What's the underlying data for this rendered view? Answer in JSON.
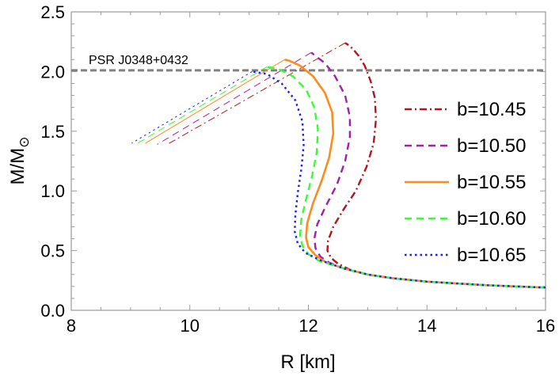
{
  "chart_data": {
    "type": "line",
    "xlabel": "R [km]",
    "ylabel_main": "M/M",
    "ylabel_sub": "⊙",
    "xlim": [
      8,
      16
    ],
    "ylim": [
      0,
      2.5
    ],
    "xticks": [
      8,
      10,
      12,
      14,
      16
    ],
    "xtick_labels": [
      "8",
      "10",
      "12",
      "14",
      "16"
    ],
    "yticks": [
      0,
      0.5,
      1.0,
      1.5,
      2.0,
      2.5
    ],
    "ytick_labels": [
      "0.0",
      "0.5",
      "1.0",
      "1.5",
      "2.0",
      "2.5"
    ],
    "grid": false,
    "legend_position": "right",
    "reference_line": {
      "label": "PSR J0348+0432",
      "y": 2.01,
      "color": "#808080"
    },
    "series": [
      {
        "name": "b=10.45",
        "color": "#b0161d",
        "dash": "dashdot",
        "x": [
          16.0,
          15.0,
          14.0,
          13.4,
          13.0,
          12.7,
          12.5,
          12.38,
          12.32,
          12.33,
          12.42,
          12.6,
          12.8,
          12.98,
          13.1,
          13.14,
          13.12,
          13.05,
          12.95,
          12.85,
          12.75,
          12.68,
          12.62
        ],
        "y": [
          0.19,
          0.21,
          0.24,
          0.27,
          0.3,
          0.34,
          0.39,
          0.44,
          0.5,
          0.58,
          0.7,
          0.85,
          1.0,
          1.2,
          1.4,
          1.6,
          1.78,
          1.92,
          2.05,
          2.13,
          2.19,
          2.22,
          2.24
        ],
        "branch": {
          "x": [
            12.62,
            9.62
          ],
          "y": [
            2.24,
            1.39
          ]
        }
      },
      {
        "name": "b=10.50",
        "color": "#a020a9",
        "dash": "dashed",
        "x": [
          16.0,
          15.0,
          14.0,
          13.4,
          13.0,
          12.6,
          12.35,
          12.2,
          12.12,
          12.1,
          12.15,
          12.3,
          12.48,
          12.62,
          12.7,
          12.7,
          12.62,
          12.45,
          12.28,
          12.12,
          12.05
        ],
        "y": [
          0.19,
          0.21,
          0.24,
          0.27,
          0.3,
          0.35,
          0.4,
          0.45,
          0.52,
          0.6,
          0.72,
          0.88,
          1.05,
          1.25,
          1.45,
          1.62,
          1.8,
          1.96,
          2.07,
          2.13,
          2.16
        ],
        "branch": {
          "x": [
            12.05,
            9.45
          ],
          "y": [
            2.16,
            1.39
          ]
        }
      },
      {
        "name": "b=10.55",
        "color": "#ff8c1a",
        "dash": "solid",
        "x": [
          16.0,
          15.0,
          14.0,
          13.4,
          13.0,
          12.6,
          12.3,
          12.12,
          12.0,
          11.96,
          11.98,
          12.08,
          12.22,
          12.35,
          12.42,
          12.4,
          12.28,
          12.08,
          11.86,
          11.68,
          11.6
        ],
        "y": [
          0.19,
          0.21,
          0.24,
          0.27,
          0.3,
          0.35,
          0.4,
          0.46,
          0.53,
          0.61,
          0.73,
          0.9,
          1.08,
          1.28,
          1.48,
          1.66,
          1.82,
          1.96,
          2.05,
          2.09,
          2.1
        ],
        "branch": {
          "x": [
            11.6,
            9.25
          ],
          "y": [
            2.1,
            1.4
          ]
        }
      },
      {
        "name": "b=10.60",
        "color": "#33ff33",
        "dash": "dashed",
        "x": [
          16.0,
          15.0,
          14.0,
          13.4,
          13.0,
          12.6,
          12.2,
          12.0,
          11.9,
          11.86,
          11.88,
          11.96,
          12.06,
          12.14,
          12.16,
          12.1,
          11.96,
          11.74,
          11.5,
          11.3
        ],
        "y": [
          0.19,
          0.21,
          0.24,
          0.27,
          0.3,
          0.35,
          0.41,
          0.47,
          0.54,
          0.63,
          0.76,
          0.93,
          1.12,
          1.32,
          1.52,
          1.7,
          1.85,
          1.96,
          2.02,
          2.04
        ],
        "branch": {
          "x": [
            11.3,
            9.12
          ],
          "y": [
            2.04,
            1.4
          ]
        }
      },
      {
        "name": "b=10.65",
        "color": "#1a1aff",
        "dash": "dotted",
        "x": [
          16.0,
          15.0,
          14.0,
          13.4,
          13.0,
          12.6,
          12.2,
          11.95,
          11.82,
          11.77,
          11.78,
          11.82,
          11.88,
          11.92,
          11.9,
          11.78,
          11.55,
          11.3,
          11.05
        ],
        "y": [
          0.19,
          0.21,
          0.24,
          0.27,
          0.3,
          0.35,
          0.42,
          0.48,
          0.56,
          0.66,
          0.8,
          0.98,
          1.18,
          1.38,
          1.58,
          1.76,
          1.9,
          1.98,
          2.0
        ],
        "branch": {
          "x": [
            11.05,
            9.02
          ],
          "y": [
            2.0,
            1.4
          ]
        }
      }
    ]
  }
}
